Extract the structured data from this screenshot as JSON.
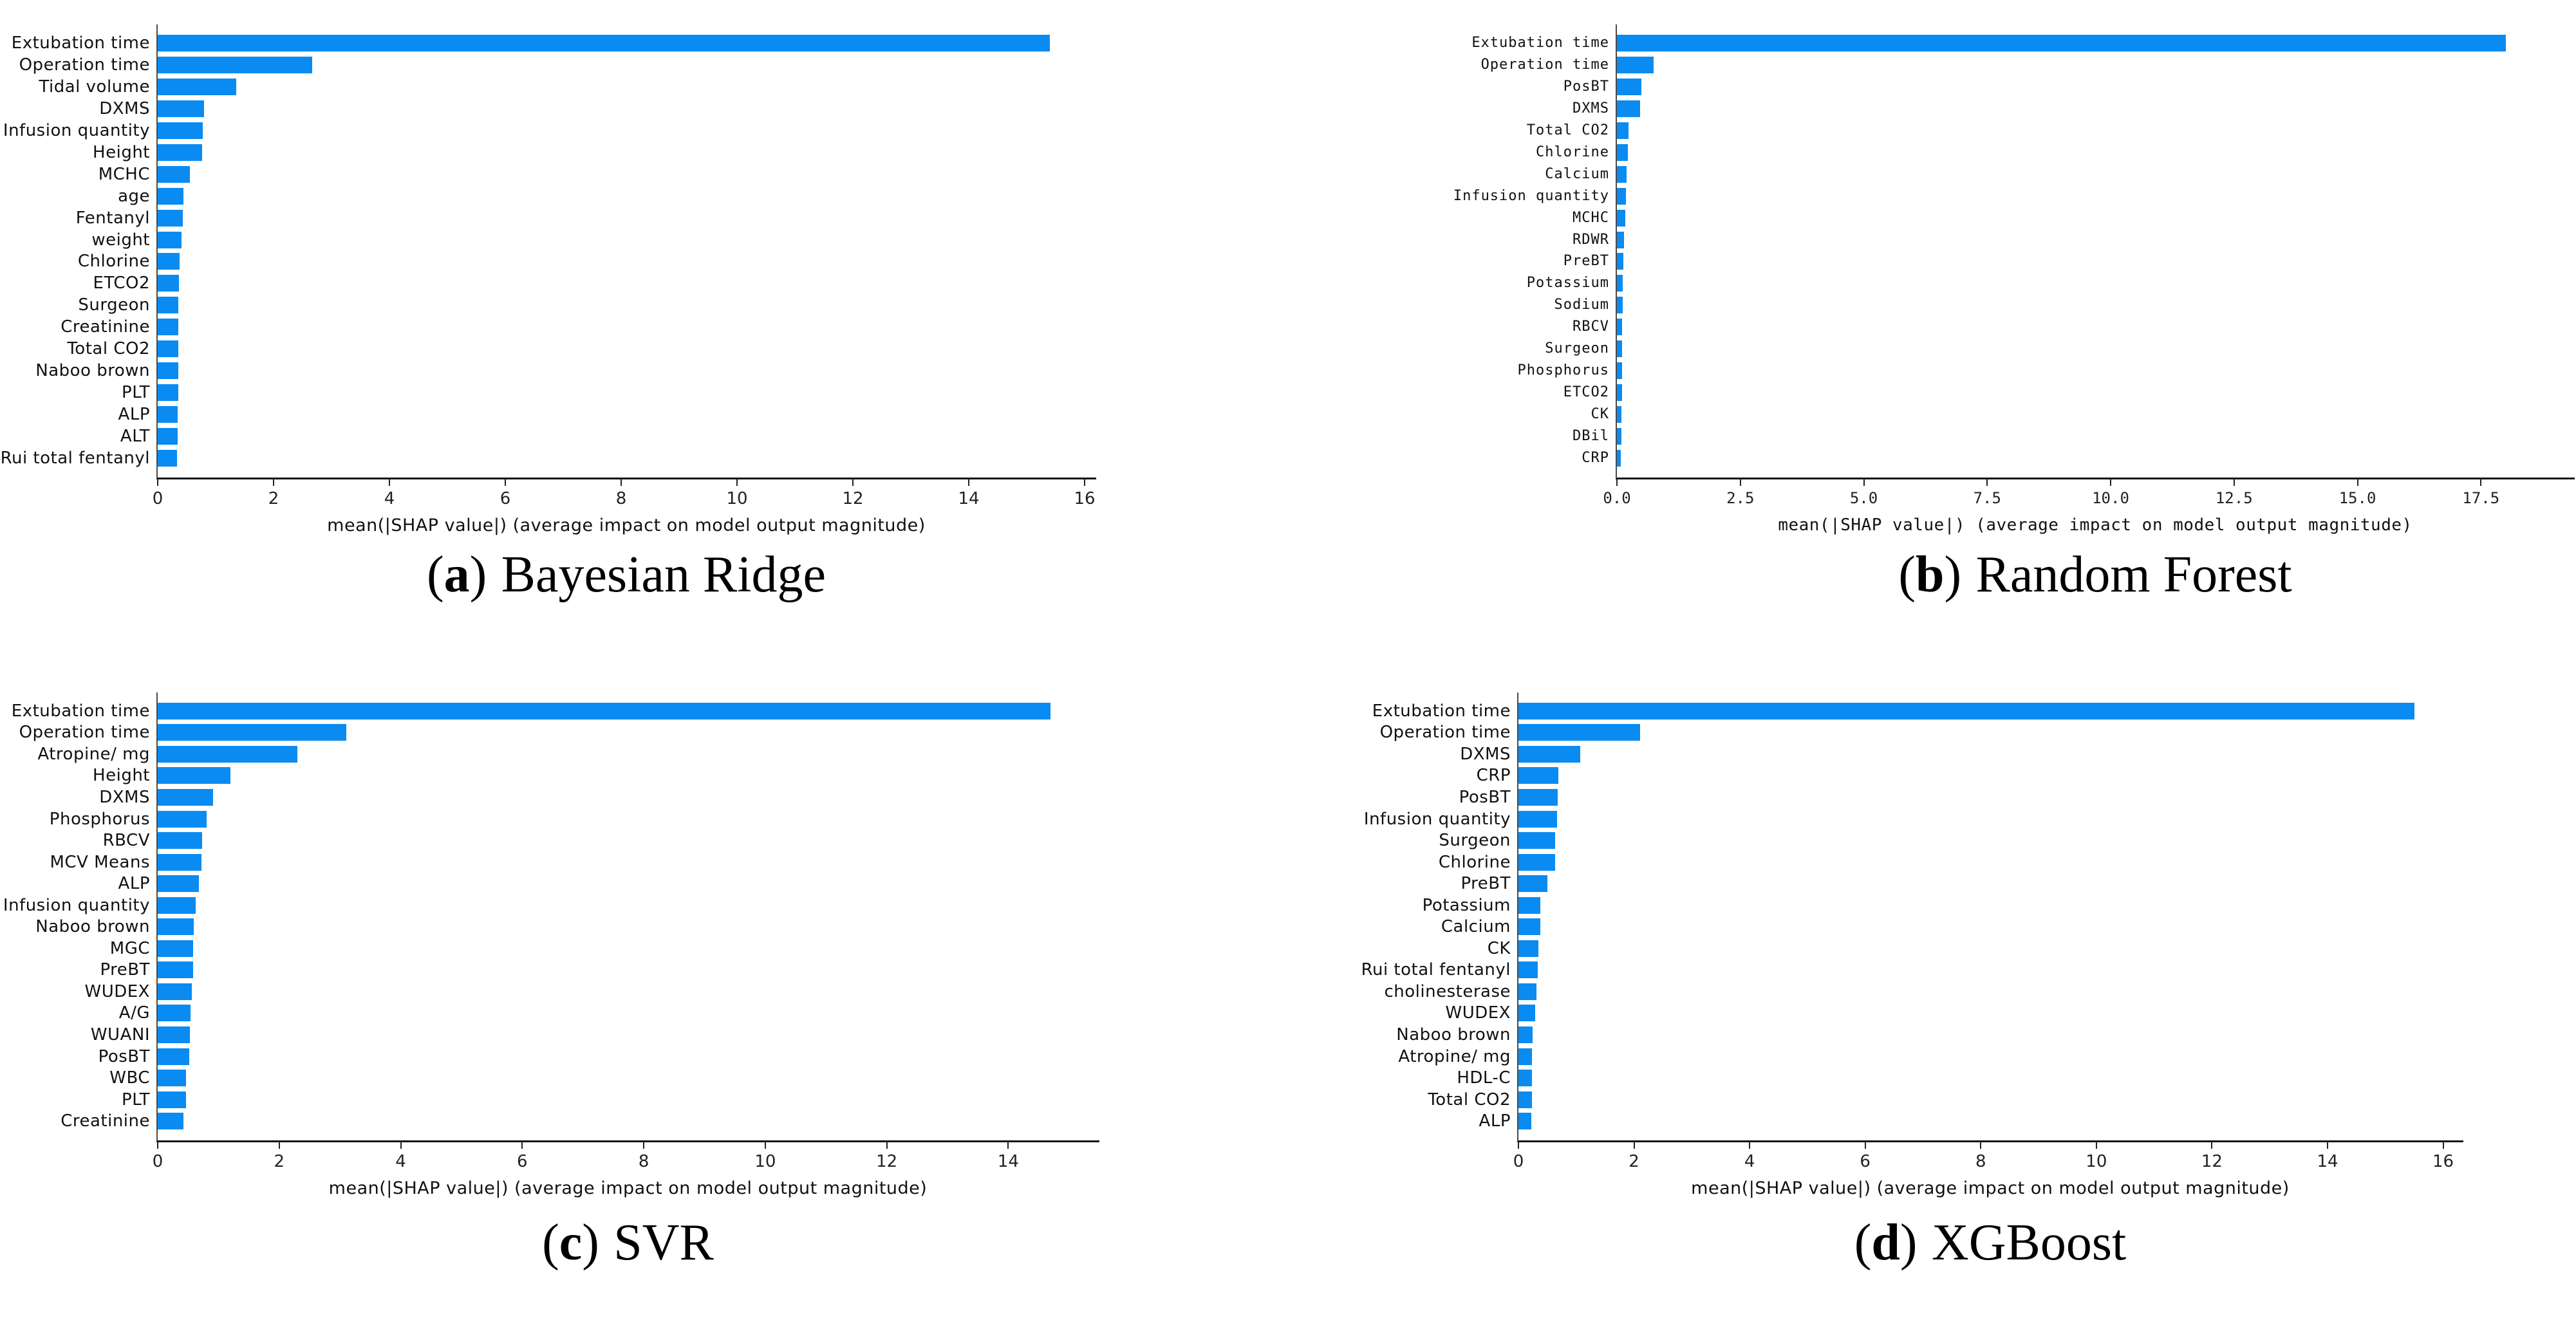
{
  "figure": {
    "bar_color": "#0a8bf2",
    "paren_open": "(",
    "paren_close": ")"
  },
  "chart_data": [
    {
      "type": "bar",
      "orientation": "horizontal",
      "caption_letter": "a",
      "caption_title": "Bayesian Ridge",
      "xlabel": "mean(|SHAP value|) (average impact on model output magnitude)",
      "xlim": [
        0,
        16.2
      ],
      "grid": false,
      "tick_values": [
        0,
        2,
        4,
        6,
        8,
        10,
        12,
        14,
        16
      ],
      "tick_labels": [
        "0",
        "2",
        "4",
        "6",
        "8",
        "10",
        "12",
        "14",
        "16"
      ],
      "categories": [
        "Extubation time",
        "Operation time",
        "Tidal volume",
        "DXMS",
        "Infusion quantity",
        "Height",
        "MCHC",
        "age",
        "Fentanyl",
        "weight",
        "Chlorine",
        "ETCO2",
        "Surgeon",
        "Creatinine",
        "Total CO2",
        "Naboo brown",
        "PLT",
        "ALP",
        "ALT",
        "Rui total fentanyl"
      ],
      "values": [
        15.4,
        2.67,
        1.35,
        0.8,
        0.78,
        0.77,
        0.56,
        0.45,
        0.43,
        0.41,
        0.38,
        0.37,
        0.36,
        0.36,
        0.35,
        0.35,
        0.35,
        0.34,
        0.34,
        0.33
      ]
    },
    {
      "type": "bar",
      "orientation": "horizontal",
      "caption_letter": "b",
      "caption_title": "Random Forest",
      "xlabel": "mean(|SHAP value|) (average impact on model output magnitude)",
      "xlim": [
        0,
        19.4
      ],
      "grid": false,
      "tick_values": [
        0,
        2.5,
        5,
        7.5,
        10,
        12.5,
        15,
        17.5
      ],
      "tick_labels": [
        "0.0",
        "2.5",
        "5.0",
        "7.5",
        "10.0",
        "12.5",
        "15.0",
        "17.5"
      ],
      "categories": [
        "Extubation time",
        "Operation time",
        "PosBT",
        "DXMS",
        "Total CO2",
        "Chlorine",
        "Calcium",
        "Infusion quantity",
        "MCHC",
        "RDWR",
        "PreBT",
        "Potassium",
        "Sodium",
        "RBCV",
        "Surgeon",
        "Phosphorus",
        "ETCO2",
        "CK",
        "DBil",
        "CRP"
      ],
      "values": [
        18.0,
        0.74,
        0.49,
        0.47,
        0.24,
        0.22,
        0.19,
        0.18,
        0.17,
        0.14,
        0.13,
        0.12,
        0.12,
        0.11,
        0.11,
        0.1,
        0.1,
        0.09,
        0.09,
        0.08
      ]
    },
    {
      "type": "bar",
      "orientation": "horizontal",
      "caption_letter": "c",
      "caption_title": "SVR",
      "xlabel": "mean(|SHAP value|) (average impact on model output magnitude)",
      "xlim": [
        0,
        15.5
      ],
      "grid": false,
      "tick_values": [
        0,
        2,
        4,
        6,
        8,
        10,
        12,
        14
      ],
      "tick_labels": [
        "0",
        "2",
        "4",
        "6",
        "8",
        "10",
        "12",
        "14"
      ],
      "categories": [
        "Extubation time",
        "Operation time",
        "Atropine/ mg",
        "Height",
        "DXMS",
        "Phosphorus",
        "RBCV",
        "MCV Means",
        "ALP",
        "Infusion quantity",
        "Naboo brown",
        "MGC",
        "PreBT",
        "WUDEX",
        "A/G",
        "WUANI",
        "PosBT",
        "WBC",
        "PLT",
        "Creatinine"
      ],
      "values": [
        14.7,
        3.1,
        2.3,
        1.2,
        0.91,
        0.81,
        0.73,
        0.72,
        0.68,
        0.62,
        0.59,
        0.58,
        0.58,
        0.56,
        0.54,
        0.53,
        0.52,
        0.47,
        0.47,
        0.42
      ]
    },
    {
      "type": "bar",
      "orientation": "horizontal",
      "caption_letter": "d",
      "caption_title": "XGBoost",
      "xlabel": "mean(|SHAP value|) (average impact on model output magnitude)",
      "xlim": [
        0,
        16.35
      ],
      "grid": false,
      "tick_values": [
        0,
        2,
        4,
        6,
        8,
        10,
        12,
        14,
        16
      ],
      "tick_labels": [
        "0",
        "2",
        "4",
        "6",
        "8",
        "10",
        "12",
        "14",
        "16"
      ],
      "categories": [
        "Extubation time",
        "Operation time",
        "DXMS",
        "CRP",
        "PosBT",
        "Infusion quantity",
        "Surgeon",
        "Chlorine",
        "PreBT",
        "Potassium",
        "Calcium",
        "CK",
        "Rui total fentanyl",
        "cholinesterase",
        "WUDEX",
        "Naboo brown",
        "Atropine/ mg",
        "HDL-C",
        "Total CO2",
        "ALP"
      ],
      "values": [
        15.5,
        2.1,
        1.07,
        0.69,
        0.68,
        0.67,
        0.63,
        0.63,
        0.5,
        0.38,
        0.38,
        0.35,
        0.33,
        0.31,
        0.29,
        0.25,
        0.23,
        0.23,
        0.23,
        0.22
      ]
    }
  ]
}
